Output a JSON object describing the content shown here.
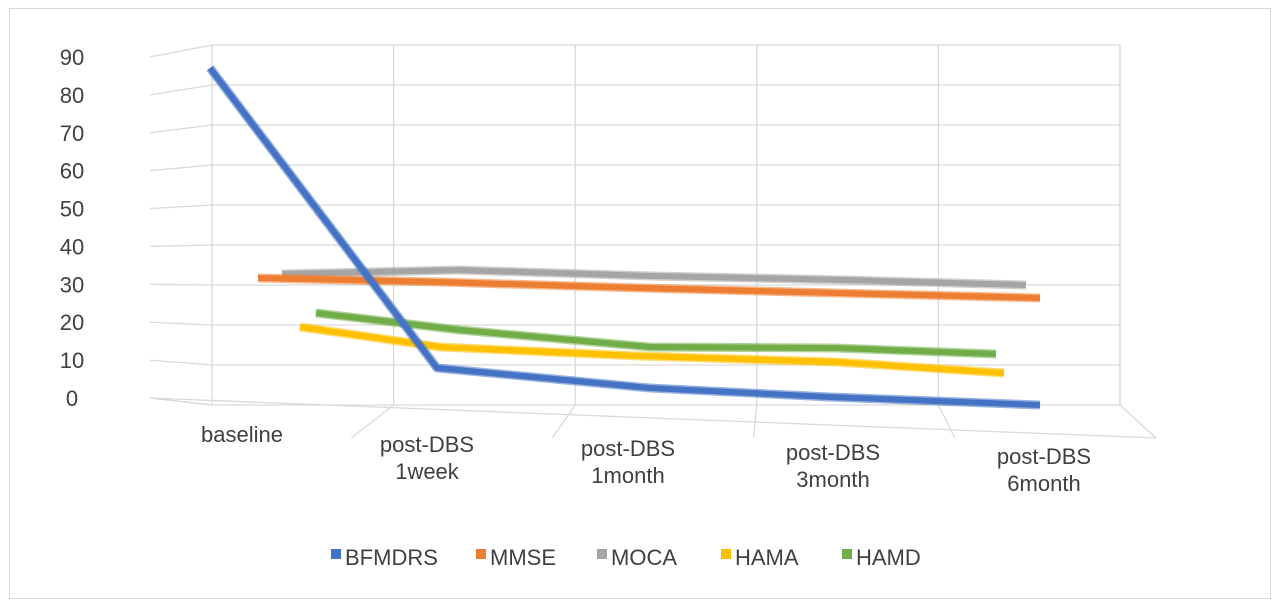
{
  "chart_data": {
    "type": "line",
    "style": "3d-perspective",
    "title": "",
    "xlabel": "",
    "ylabel": "",
    "ylim": [
      0,
      90
    ],
    "yticks": [
      0,
      10,
      20,
      30,
      40,
      50,
      60,
      70,
      80,
      90
    ],
    "categories": [
      [
        "baseline"
      ],
      [
        "post-DBS",
        "1week"
      ],
      [
        "post-DBS",
        "1month"
      ],
      [
        "post-DBS",
        "3month"
      ],
      [
        "post-DBS",
        "6month"
      ]
    ],
    "legend_position": "bottom",
    "series": [
      {
        "name": "MOCA",
        "color": "#a5a5a5",
        "values": [
          27,
          28,
          27,
          26,
          25
        ]
      },
      {
        "name": "MMSE",
        "color": "#ed7d31",
        "values": [
          28,
          27,
          26,
          25,
          24
        ]
      },
      {
        "name": "HAMD",
        "color": "#70ad47",
        "values": [
          15,
          10,
          8,
          9,
          9
        ]
      },
      {
        "name": "HAMA",
        "color": "#ffc000",
        "values": [
          12,
          7,
          6,
          6,
          5
        ]
      },
      {
        "name": "BFMDRS",
        "color": "#4472c4",
        "values": [
          87,
          6,
          3,
          1,
          0
        ]
      }
    ],
    "legend_order": [
      "BFMDRS",
      "MMSE",
      "MOCA",
      "HAMA",
      "HAMD"
    ]
  }
}
